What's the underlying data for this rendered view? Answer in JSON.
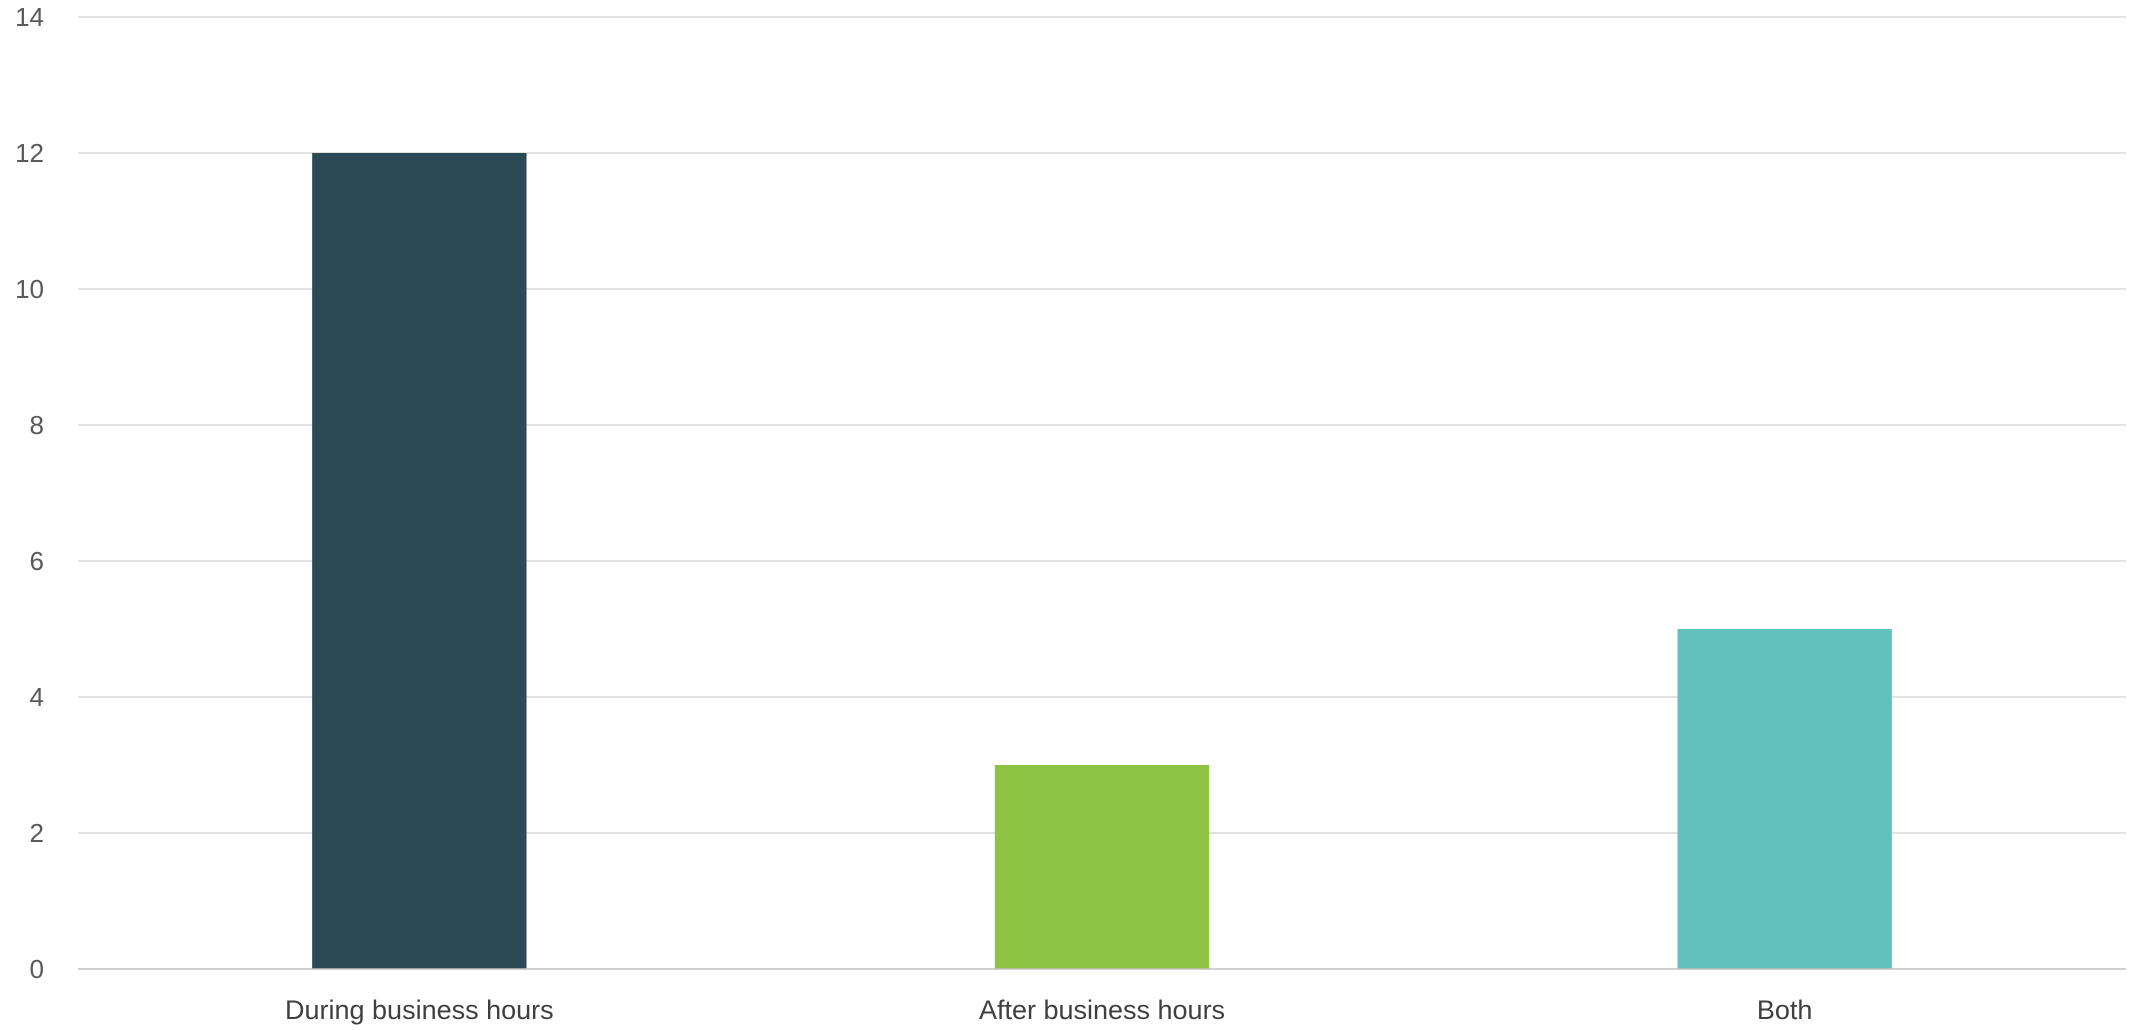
{
  "chart_data": {
    "type": "bar",
    "categories": [
      "During business hours",
      "After business hours",
      "Both"
    ],
    "values": [
      12,
      3,
      5
    ],
    "colors": [
      "#2b4a55",
      "#8dc443",
      "#61c1bd"
    ],
    "ylim": [
      0,
      14
    ],
    "yticks": [
      0,
      2,
      4,
      6,
      8,
      10,
      12,
      14
    ],
    "grid": true,
    "legend": "none"
  }
}
